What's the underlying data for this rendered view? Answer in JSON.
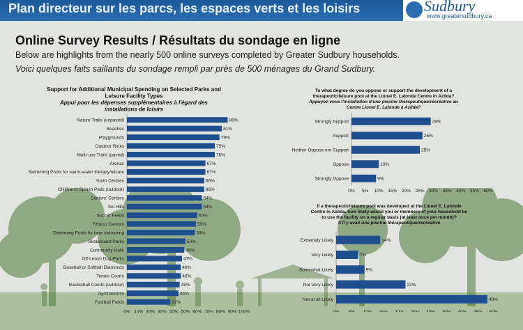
{
  "banner": {
    "title": "Plan directeur sur les parcs, les espaces verts et les loisirs"
  },
  "logo": {
    "name": "Sudbury",
    "url": "www.greatersudbury.ca"
  },
  "headline": "Online Survey Results / Résultats du sondage en ligne",
  "intro": {
    "english": "Below are highlights from the nearly 500 online surveys completed by Greater Sudbury households.",
    "french": "Voici quelques faits saillants du sondage rempli par près de 500 ménages du Grand Sudbury."
  },
  "colors": {
    "bar": "#1f4e8f",
    "banner": "#2a6db0",
    "tree": "#4c7a3a"
  },
  "chart_data": [
    {
      "type": "bar",
      "orientation": "horizontal",
      "title_lines": [
        "Support for Additional Municipal Spending on Selected Parks and",
        "Leisure Facility Types"
      ],
      "subtitle_lines": [
        "Appui pour les dépenses supplémentaires à l'égard des",
        "installations de loisirs"
      ],
      "categories": [
        "Nature Trails (unpaved)",
        "Beaches",
        "Playgrounds",
        "Outdoor Rinks",
        "Multi-use Trails (paved)",
        "Arenas",
        "Swimming Pools for warm-water therapy/leisure",
        "Youth Centres",
        "Children's Splash Pads (outdoor)",
        "Seniors' Centres",
        "Ski Hills",
        "Soccer Fields",
        "Fitness Centres",
        "Swimming Pools for lane swimming",
        "Skateboard Parks",
        "Community Halls",
        "Off-Leash Dog Parks",
        "Baseball or Softball Diamonds",
        "Tennis Courts",
        "Basketball Courts (outdoor)",
        "Gymnasiums",
        "Football Fields"
      ],
      "values": [
        86,
        81,
        79,
        75,
        75,
        67,
        67,
        66,
        66,
        64,
        64,
        60,
        59,
        58,
        50,
        49,
        47,
        46,
        46,
        45,
        44,
        37
      ],
      "value_labels": [
        "86%",
        "81%",
        "79%",
        "75%",
        "75%",
        "67%",
        "67%",
        "66%",
        "66%",
        "64%",
        "64%",
        "60%",
        "59%",
        "58%",
        "50%",
        "49%",
        "47%",
        "46%",
        "46%",
        "45%",
        "44%",
        "37%"
      ],
      "xlim": [
        0,
        100
      ],
      "ticks": [
        "0%",
        "10%",
        "20%",
        "30%",
        "40%",
        "50%",
        "60%",
        "70%",
        "80%",
        "90%",
        "100%"
      ]
    },
    {
      "type": "bar",
      "orientation": "horizontal",
      "title_lines": [
        "To what degree do you oppose or support the development of a",
        "therapeutic/leisure pool at the Lionel E. Lalonde Centre in Azilda?"
      ],
      "subtitle_lines": [
        "Appuyez-vous l'installation d'une piscine thérapeutique/récréative au",
        "Centre Lionel E. Lalonde à Azilda?"
      ],
      "categories": [
        "Strongly Support",
        "Support",
        "Neither Oppose nor Support",
        "Oppose",
        "Strongly Oppose"
      ],
      "values": [
        29,
        26,
        25,
        10,
        9
      ],
      "value_labels": [
        "29%",
        "26%",
        "25%",
        "10%",
        "9%"
      ],
      "xlim": [
        0,
        50
      ],
      "ticks": [
        "0%",
        "5%",
        "10%",
        "15%",
        "20%",
        "25%",
        "30%",
        "35%",
        "40%",
        "45%",
        "50%"
      ]
    },
    {
      "type": "bar",
      "orientation": "horizontal",
      "title_lines": [
        "If a therapeutic/leisure pool was developed at the Lionel E. Lalonde",
        "Centre in Azilda, how likely would you or members of your household be",
        "to use the facility on a regular basis (at least once per month)?"
      ],
      "subtitle_lines": [
        "S'il y avait une piscine thérapeutique/récréative"
      ],
      "categories": [
        "Extremely Likely",
        "Very Likely",
        "Somewhat Likely",
        "Not Very Likely",
        "Not at all Likely"
      ],
      "values": [
        14,
        7,
        9,
        22,
        48
      ],
      "value_labels": [
        "14%",
        "7%",
        "9%",
        "22%",
        "48%"
      ],
      "xlim": [
        0,
        50
      ],
      "ticks": [
        "0%",
        "5%",
        "10%",
        "15%",
        "20%",
        "25%",
        "30%",
        "35%",
        "40%",
        "45%",
        "50%"
      ]
    }
  ]
}
